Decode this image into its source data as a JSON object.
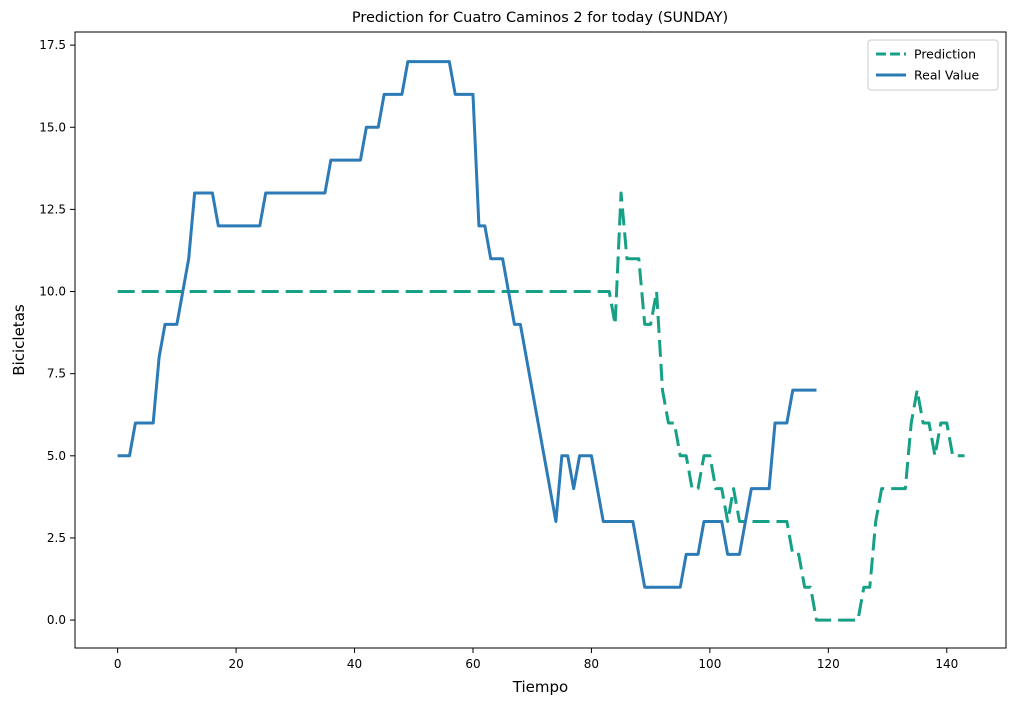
{
  "chart_data": {
    "type": "line",
    "title": "Prediction for Cuatro Caminos 2 for today (SUNDAY)",
    "xlabel": "Tiempo",
    "ylabel": "Bicicletas",
    "xlim": [
      -7.2,
      150
    ],
    "ylim": [
      -0.85,
      17.9
    ],
    "xticks": [
      0,
      20,
      40,
      60,
      80,
      100,
      120,
      140
    ],
    "xtick_labels": [
      "0",
      "20",
      "40",
      "60",
      "80",
      "100",
      "120",
      "140"
    ],
    "yticks": [
      0,
      2.5,
      5,
      7.5,
      10,
      12.5,
      15,
      17.5
    ],
    "ytick_labels": [
      "0.0",
      "2.5",
      "5.0",
      "7.5",
      "10.0",
      "12.5",
      "15.0",
      "17.5"
    ],
    "grid": false,
    "legend_position": "top-right",
    "series": [
      {
        "name": "Prediction",
        "color": "#16a085",
        "style": "dashed",
        "points": [
          [
            0,
            10
          ],
          [
            83,
            10
          ],
          [
            84,
            9
          ],
          [
            85,
            13
          ],
          [
            86,
            11
          ],
          [
            88,
            11
          ],
          [
            89,
            9
          ],
          [
            90,
            9
          ],
          [
            91,
            10
          ],
          [
            92,
            7
          ],
          [
            93,
            6
          ],
          [
            94,
            6
          ],
          [
            95,
            5
          ],
          [
            96,
            5
          ],
          [
            97,
            4
          ],
          [
            98,
            4
          ],
          [
            99,
            5
          ],
          [
            100,
            5
          ],
          [
            101,
            4
          ],
          [
            102,
            4
          ],
          [
            103,
            3
          ],
          [
            104,
            4
          ],
          [
            105,
            3
          ],
          [
            113,
            3
          ],
          [
            114,
            2
          ],
          [
            115,
            2
          ],
          [
            116,
            1
          ],
          [
            117,
            1
          ],
          [
            118,
            0
          ],
          [
            125,
            0
          ],
          [
            126,
            1
          ],
          [
            127,
            1
          ],
          [
            128,
            3
          ],
          [
            129,
            4
          ],
          [
            133,
            4
          ],
          [
            134,
            6
          ],
          [
            135,
            7
          ],
          [
            136,
            6
          ],
          [
            137,
            6
          ],
          [
            138,
            5
          ],
          [
            139,
            6
          ],
          [
            140,
            6
          ],
          [
            141,
            5
          ],
          [
            143,
            5
          ]
        ]
      },
      {
        "name": "Real Value",
        "color": "#2c7bb6",
        "style": "solid",
        "points": [
          [
            0,
            5
          ],
          [
            2,
            5
          ],
          [
            3,
            6
          ],
          [
            6,
            6
          ],
          [
            7,
            8
          ],
          [
            8,
            9
          ],
          [
            10,
            9
          ],
          [
            12,
            11
          ],
          [
            13,
            13
          ],
          [
            16,
            13
          ],
          [
            17,
            12
          ],
          [
            24,
            12
          ],
          [
            25,
            13
          ],
          [
            35,
            13
          ],
          [
            36,
            14
          ],
          [
            41,
            14
          ],
          [
            42,
            15
          ],
          [
            44,
            15
          ],
          [
            45,
            16
          ],
          [
            48,
            16
          ],
          [
            49,
            17
          ],
          [
            56,
            17
          ],
          [
            57,
            16
          ],
          [
            60,
            16
          ],
          [
            61,
            12
          ],
          [
            62,
            12
          ],
          [
            63,
            11
          ],
          [
            65,
            11
          ],
          [
            67,
            9
          ],
          [
            68,
            9
          ],
          [
            74,
            3
          ],
          [
            75,
            5
          ],
          [
            76,
            5
          ],
          [
            77,
            4
          ],
          [
            78,
            5
          ],
          [
            80,
            5
          ],
          [
            82,
            3
          ],
          [
            87,
            3
          ],
          [
            89,
            1
          ],
          [
            95,
            1
          ],
          [
            96,
            2
          ],
          [
            98,
            2
          ],
          [
            99,
            3
          ],
          [
            102,
            3
          ],
          [
            103,
            2
          ],
          [
            105,
            2
          ],
          [
            106,
            3
          ],
          [
            107,
            4
          ],
          [
            110,
            4
          ],
          [
            111,
            6
          ],
          [
            113,
            6
          ],
          [
            114,
            7
          ],
          [
            118,
            7
          ]
        ]
      }
    ]
  }
}
